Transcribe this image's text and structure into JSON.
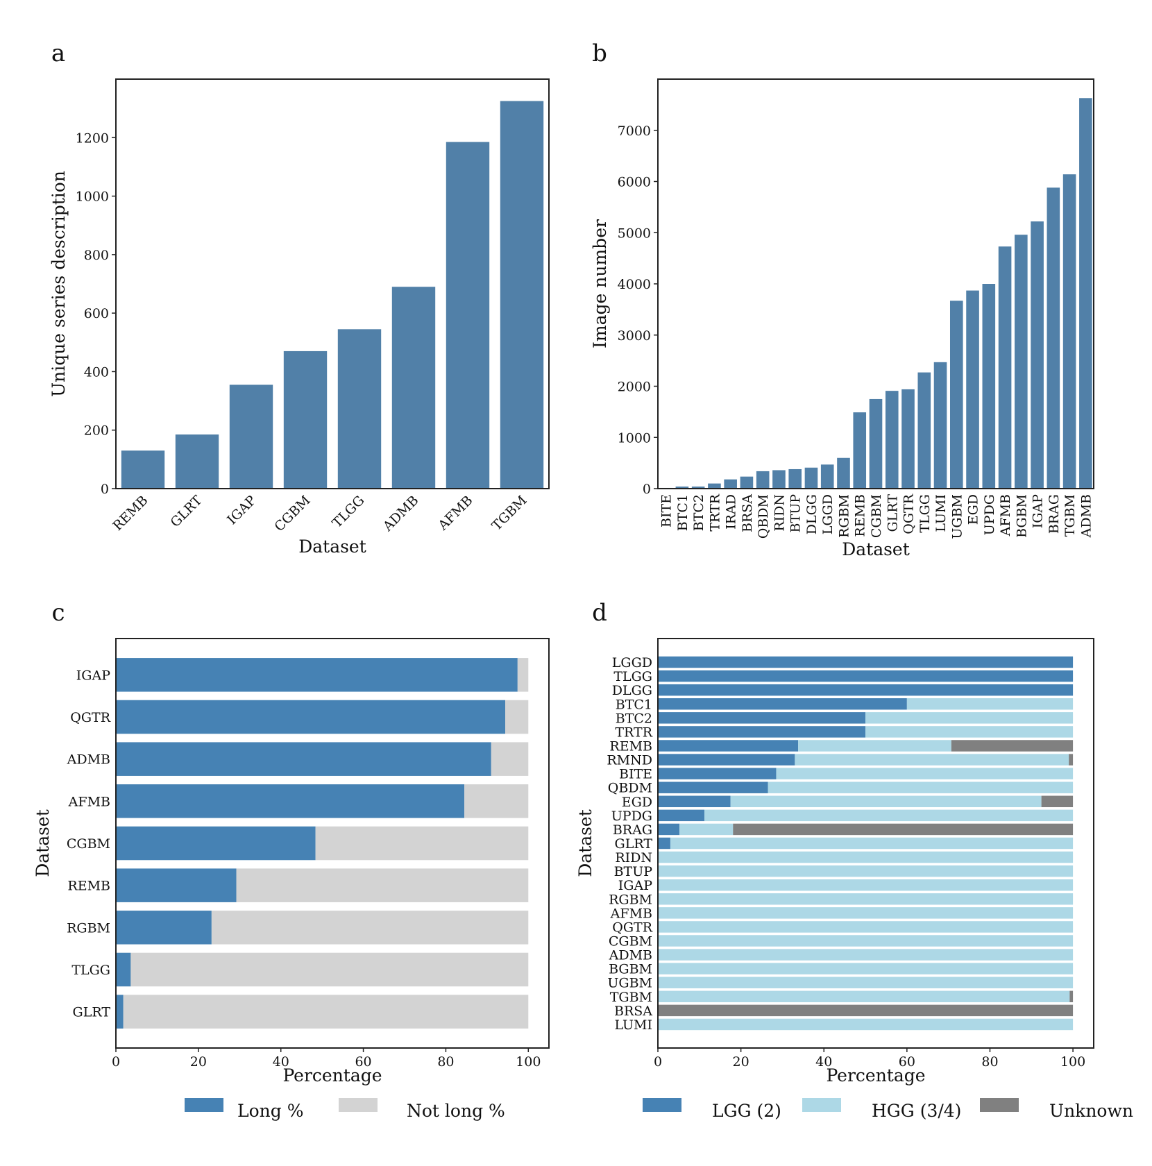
{
  "chart_data": [
    {
      "panel": "a",
      "type": "bar",
      "xlabel": "Dataset",
      "ylabel": "Unique series description",
      "ylim": [
        0,
        1400
      ],
      "yticks": [
        0,
        200,
        400,
        600,
        800,
        1000,
        1200
      ],
      "categories": [
        "REMB",
        "GLRT",
        "IGAP",
        "CGBM",
        "TLGG",
        "ADMB",
        "AFMB",
        "TGBM"
      ],
      "values": [
        130,
        185,
        355,
        470,
        545,
        690,
        1185,
        1325
      ],
      "color": "#5180a8"
    },
    {
      "panel": "b",
      "type": "bar",
      "xlabel": "Dataset",
      "ylabel": "Image number",
      "ylim": [
        0,
        8000
      ],
      "yticks": [
        0,
        1000,
        2000,
        3000,
        4000,
        5000,
        6000,
        7000
      ],
      "categories": [
        "BITE",
        "BTC1",
        "BTC2",
        "TRTR",
        "IRAD",
        "BRSA",
        "QBDM",
        "RIDN",
        "BTUP",
        "DLGG",
        "LGGD",
        "RGBM",
        "REMB",
        "CGBM",
        "GLRT",
        "QGTR",
        "TLGG",
        "LUMI",
        "UGBM",
        "EGD",
        "UPDG",
        "AFMB",
        "BGBM",
        "IGAP",
        "BRAG",
        "TGBM",
        "ADMB"
      ],
      "values": [
        14,
        40,
        40,
        100,
        180,
        235,
        340,
        360,
        380,
        410,
        470,
        600,
        1490,
        1750,
        1910,
        1940,
        2270,
        2470,
        3670,
        3870,
        4000,
        4730,
        4960,
        5220,
        5880,
        6140,
        7630
      ],
      "color": "#5180a8"
    },
    {
      "panel": "c",
      "type": "bar",
      "orientation": "horizontal",
      "stacked": true,
      "xlabel": "Percentage",
      "ylabel": "Dataset",
      "xlim": [
        0,
        105
      ],
      "xticks": [
        0,
        20,
        40,
        60,
        80,
        100
      ],
      "categories": [
        "IGAP",
        "QGTR",
        "ADMB",
        "AFMB",
        "CGBM",
        "REMB",
        "RGBM",
        "TLGG",
        "GLRT"
      ],
      "series": [
        {
          "name": "Long %",
          "color": "#4682b4",
          "values": [
            97.4,
            94.4,
            91.0,
            84.5,
            48.4,
            29.2,
            23.2,
            3.6,
            1.8
          ]
        },
        {
          "name": "Not long %",
          "color": "#d3d3d3",
          "values": [
            2.6,
            5.6,
            9.0,
            15.5,
            51.6,
            70.8,
            76.8,
            96.4,
            98.2
          ]
        }
      ],
      "legend": "bottom"
    },
    {
      "panel": "d",
      "type": "bar",
      "orientation": "horizontal",
      "stacked": true,
      "xlabel": "Percentage",
      "ylabel": "Dataset",
      "xlim": [
        0,
        105
      ],
      "xticks": [
        0,
        20,
        40,
        60,
        80,
        100
      ],
      "categories": [
        "LGGD",
        "TLGG",
        "DLGG",
        "BTC1",
        "BTC2",
        "TRTR",
        "REMB",
        "RMND",
        "BITE",
        "QBDM",
        "EGD",
        "UPDG",
        "BRAG",
        "GLRT",
        "RIDN",
        "BTUP",
        "IGAP",
        "RGBM",
        "AFMB",
        "QGTR",
        "CGBM",
        "ADMB",
        "BGBM",
        "UGBM",
        "TGBM",
        "BRSA",
        "LUMI"
      ],
      "series": [
        {
          "name": "LGG (2)",
          "color": "#4682b4",
          "values": [
            100,
            100,
            100,
            60,
            50,
            50,
            33.8,
            33,
            28.5,
            26.5,
            17.5,
            11.2,
            5.2,
            3.0,
            0,
            0,
            0,
            0,
            0,
            0,
            0,
            0,
            0,
            0,
            0,
            0,
            0
          ]
        },
        {
          "name": "HGG (3/4)",
          "color": "#add8e6",
          "values": [
            0,
            0,
            0,
            40,
            50,
            50,
            36.9,
            66,
            71.5,
            73.5,
            74.9,
            88.8,
            12.9,
            97.0,
            100,
            100,
            100,
            100,
            100,
            100,
            100,
            100,
            100,
            100,
            99.2,
            0,
            100
          ]
        },
        {
          "name": "Unknown",
          "color": "#808080",
          "values": [
            0,
            0,
            0,
            0,
            0,
            0,
            29.3,
            1,
            0,
            0,
            7.6,
            0,
            81.9,
            0,
            0,
            0,
            0,
            0,
            0,
            0,
            0,
            0,
            0,
            0,
            0.8,
            100,
            0
          ]
        }
      ],
      "legend": "bottom"
    }
  ]
}
